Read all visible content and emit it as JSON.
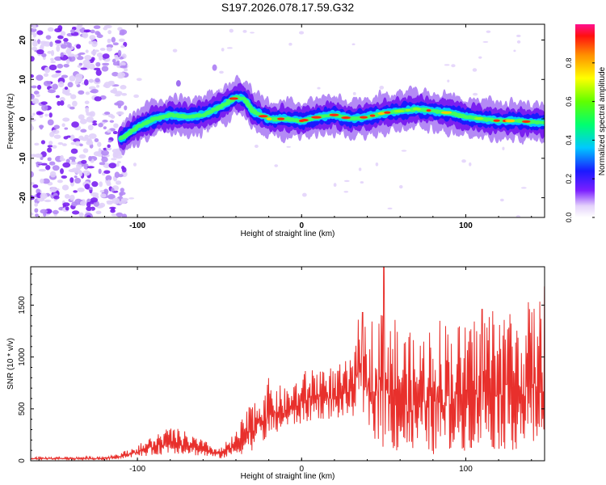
{
  "title": "S197.2026.078.17.59.G32",
  "chart_data": [
    {
      "type": "heatmap",
      "xlabel": "Height of straight line (km)",
      "ylabel": "Frequency (Hz)",
      "xlim": [
        -165,
        148
      ],
      "ylim": [
        -25,
        24
      ],
      "xticks": [
        -100,
        0,
        100
      ],
      "xtick_labels": [
        "-100",
        "0",
        "100"
      ],
      "yticks": [
        -20,
        -10,
        0,
        10,
        20
      ],
      "ytick_labels": [
        "-20",
        "-10",
        "0",
        "10",
        "20"
      ],
      "ridge_x": [
        -110,
        -100,
        -90,
        -80,
        -70,
        -60,
        -50,
        -40,
        -35,
        -30,
        -25,
        -20,
        -10,
        0,
        10,
        20,
        30,
        40,
        50,
        60,
        70,
        80,
        90,
        100,
        110,
        120,
        130,
        148
      ],
      "ridge_hz": [
        -5,
        -2,
        0,
        1,
        0.5,
        1,
        3,
        5.5,
        5,
        2,
        1,
        0,
        0,
        -0.5,
        0.5,
        1,
        0,
        0.5,
        1.5,
        2,
        2.5,
        2,
        1.5,
        0.5,
        0,
        -0.5,
        -0.5,
        -1
      ],
      "colorbar": {
        "label": "Normalized spectral amplitude",
        "range": [
          0,
          1
        ],
        "ticks": [
          0.0,
          0.2,
          0.4,
          0.6,
          0.8
        ],
        "tick_labels": [
          "0.0",
          "0.2",
          "0.4",
          "0.6",
          "0.8"
        ]
      }
    },
    {
      "type": "line",
      "xlabel": "Height of straight line (km)",
      "ylabel": "SNR (10 * v/v)",
      "xlim": [
        -165,
        148
      ],
      "ylim": [
        0,
        1870
      ],
      "xticks": [
        -100,
        0,
        100
      ],
      "xtick_labels": [
        "-100",
        "0",
        "100"
      ],
      "yticks": [
        0,
        500,
        1000,
        1500
      ],
      "ytick_labels": [
        "0",
        "500",
        "1000",
        "1500"
      ],
      "series": [
        {
          "name": "SNR",
          "color": "#e8302c",
          "envelope_x": [
            -165,
            -120,
            -110,
            -100,
            -90,
            -80,
            -70,
            -60,
            -50,
            -40,
            -30,
            -20,
            -10,
            0,
            10,
            20,
            30,
            35,
            40,
            50,
            60,
            70,
            80,
            90,
            100,
            110,
            120,
            130,
            140,
            148
          ],
          "envelope_low": [
            10,
            10,
            20,
            40,
            50,
            70,
            60,
            40,
            20,
            40,
            100,
            200,
            300,
            350,
            400,
            400,
            400,
            500,
            300,
            100,
            50,
            50,
            50,
            50,
            100,
            100,
            100,
            100,
            100,
            100
          ],
          "envelope_high": [
            35,
            40,
            80,
            150,
            250,
            330,
            280,
            200,
            120,
            280,
            600,
            800,
            700,
            850,
            950,
            900,
            1000,
            1400,
            1300,
            1700,
            1300,
            1200,
            1400,
            1400,
            1300,
            1500,
            1550,
            1500,
            1550,
            1600
          ],
          "peaks": [
            {
              "x": 37,
              "y": 1430
            },
            {
              "x": 50,
              "y": 1870
            },
            {
              "x": 110,
              "y": 1460
            },
            {
              "x": 148,
              "y": 1680
            }
          ]
        }
      ]
    }
  ]
}
